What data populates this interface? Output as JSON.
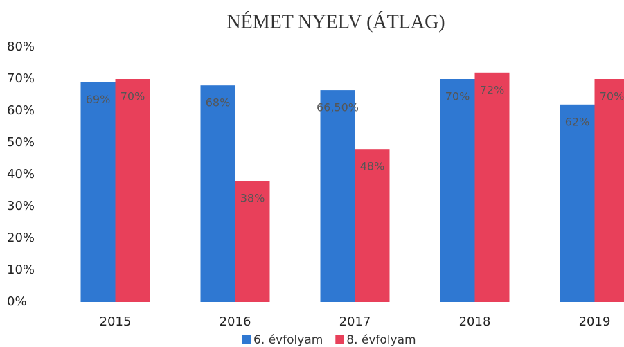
{
  "chart_data": {
    "type": "bar",
    "title": "NÉMET NYELV (ÁTLAG)",
    "categories": [
      "2015",
      "2016",
      "2017",
      "2018",
      "2019"
    ],
    "series": [
      {
        "name": "6. évfolyam",
        "color": "#2f78d2",
        "values": [
          69,
          68,
          66.5,
          70,
          62
        ],
        "value_labels": [
          "69%",
          "68%",
          "66,50%",
          "70%",
          "62%"
        ]
      },
      {
        "name": "8. évfolyam",
        "color": "#e8405a",
        "values": [
          70,
          38,
          48,
          72,
          70
        ],
        "value_labels": [
          "70%",
          "38%",
          "48%",
          "72%",
          "70%"
        ]
      }
    ],
    "ylim": [
      0,
      80
    ],
    "yticks": [
      {
        "value": 0,
        "label": "0%"
      },
      {
        "value": 10,
        "label": "10%"
      },
      {
        "value": 20,
        "label": "20%"
      },
      {
        "value": 30,
        "label": "30%"
      },
      {
        "value": 40,
        "label": "40%"
      },
      {
        "value": 50,
        "label": "50%"
      },
      {
        "value": 60,
        "label": "60%"
      },
      {
        "value": 70,
        "label": "70%"
      },
      {
        "value": 80,
        "label": "80%"
      }
    ],
    "grid": false,
    "legend": "bottom"
  }
}
